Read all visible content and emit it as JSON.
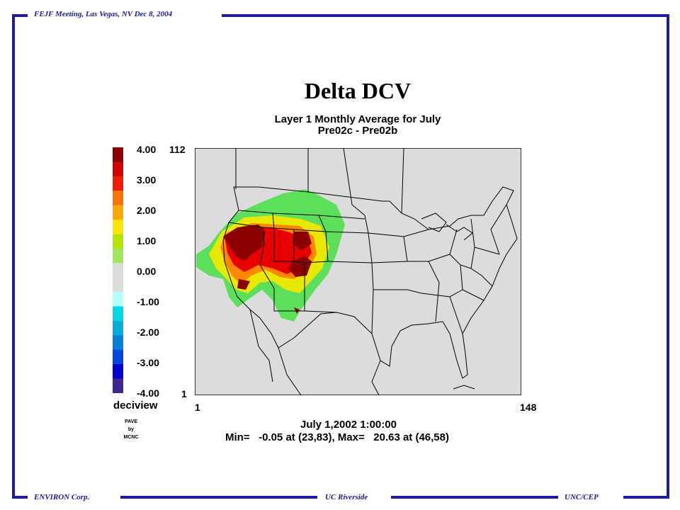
{
  "header": {
    "meeting": "FEJF Meeting, Las Vegas, NV Dec 8, 2004"
  },
  "footer": {
    "left": "ENVIRON Corp.",
    "center": "UC Riverside",
    "right": "UNC/CEP"
  },
  "plot": {
    "title": "Delta DCV",
    "subtitle_line1": "Layer 1 Monthly Average for July",
    "subtitle_line2": "Pre02c - Pre02b",
    "colorbar_unit": "deciview",
    "colorbar_labels": [
      "4.00",
      "3.00",
      "2.00",
      "1.00",
      "0.00",
      "-1.00",
      "-2.00",
      "-3.00",
      "-4.00"
    ],
    "colorbar_colors": [
      "#8c0000",
      "#d40000",
      "#ee1c00",
      "#ff7400",
      "#ffa800",
      "#ffe400",
      "#b8e400",
      "#9ee85a",
      "#dcdcdc",
      "#dcdcdc",
      "#b4ffff",
      "#00d8e4",
      "#00b0d8",
      "#0080d8",
      "#0048e0",
      "#0000d0",
      "#402890"
    ],
    "grid_y_max": "112",
    "grid_y_min": "1",
    "grid_x_min": "1",
    "grid_x_max": "148",
    "credit_line1": "PAVE",
    "credit_line2": "by",
    "credit_line3": "MCNC",
    "timestamp": "July 1,2002 1:00:00",
    "minmax": "Min=   -0.05 at (23,83), Max=   20.63 at (46,58)"
  },
  "colors": {
    "frame": "#1c1c9c",
    "background_map": "#dcdcdc"
  }
}
